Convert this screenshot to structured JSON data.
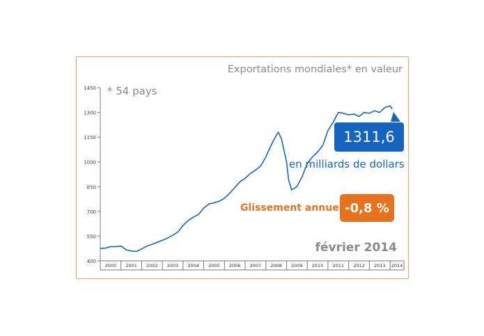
{
  "chart_data": {
    "type": "line",
    "title": "Exportations mondiales* en valeur",
    "note": "* 54 pays",
    "period_label": "février 2014",
    "last_value_label": "1311,6",
    "unit_label": "en milliards de dollars",
    "yoy_label": "Glissement annuel",
    "yoy_value": "-0,8 %",
    "ylim": [
      400,
      1450
    ],
    "yticks": [
      400,
      550,
      700,
      850,
      1000,
      1150,
      1300,
      1450
    ],
    "xlim": [
      2000,
      2014.67
    ],
    "xtick_labels": [
      "2000",
      "2001",
      "2002",
      "2003",
      "2004",
      "2005",
      "2006",
      "2007",
      "2008",
      "2009",
      "2010",
      "2011",
      "2012",
      "2013",
      "2014"
    ],
    "series": [
      {
        "name": "Exportations mondiales",
        "color": "#1565c0",
        "x": [
          2000.0,
          2000.25,
          2000.5,
          2000.75,
          2001.0,
          2001.25,
          2001.5,
          2001.75,
          2002.0,
          2002.25,
          2002.5,
          2002.75,
          2003.0,
          2003.25,
          2003.5,
          2003.75,
          2004.0,
          2004.25,
          2004.5,
          2004.75,
          2005.0,
          2005.25,
          2005.5,
          2005.75,
          2006.0,
          2006.25,
          2006.5,
          2006.75,
          2007.0,
          2007.25,
          2007.5,
          2007.75,
          2008.0,
          2008.25,
          2008.5,
          2008.6,
          2008.75,
          2009.0,
          2009.1,
          2009.25,
          2009.5,
          2009.75,
          2010.0,
          2010.25,
          2010.5,
          2010.75,
          2011.0,
          2011.25,
          2011.5,
          2011.75,
          2012.0,
          2012.25,
          2012.5,
          2012.75,
          2013.0,
          2013.25,
          2013.5,
          2013.75,
          2014.0,
          2014.1
        ],
        "values": [
          475,
          477,
          487,
          486,
          490,
          467,
          460,
          457,
          472,
          490,
          500,
          512,
          525,
          538,
          555,
          575,
          615,
          645,
          665,
          682,
          720,
          745,
          752,
          762,
          780,
          810,
          845,
          880,
          900,
          930,
          950,
          975,
          1030,
          1100,
          1160,
          1180,
          1140,
          1000,
          890,
          830,
          850,
          910,
          990,
          1030,
          1060,
          1100,
          1190,
          1240,
          1300,
          1295,
          1285,
          1290,
          1275,
          1300,
          1295,
          1310,
          1300,
          1330,
          1340,
          1320
        ]
      }
    ]
  }
}
